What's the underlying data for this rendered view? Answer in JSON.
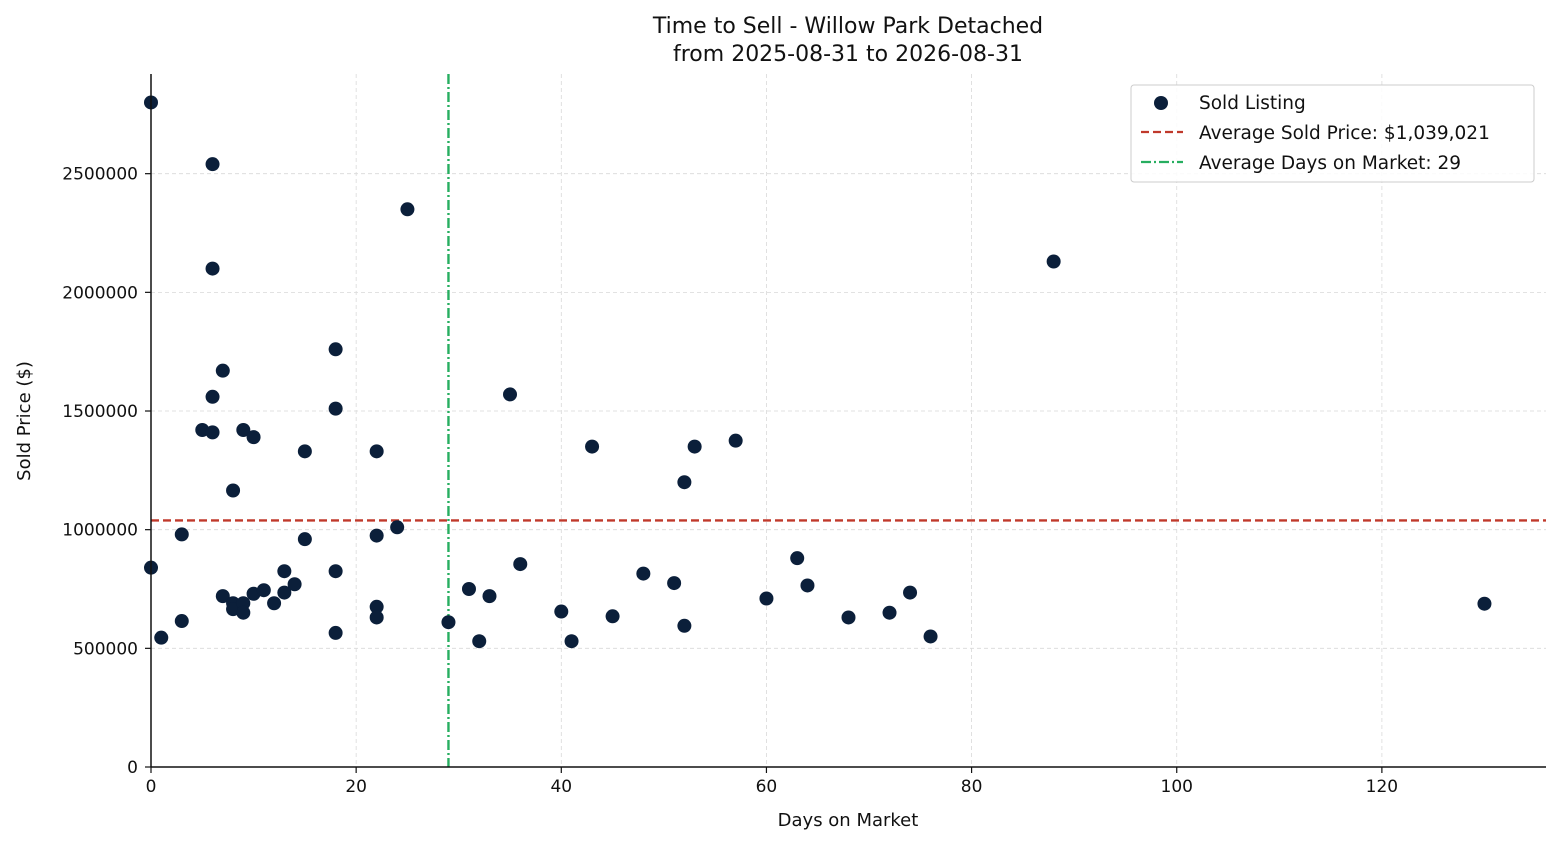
{
  "chart_data": {
    "type": "scatter",
    "title": "Time to Sell - Willow Park Detached",
    "subtitle": "from 2025-08-31 to 2026-08-31",
    "xlabel": "Days on Market",
    "ylabel": "Sold Price ($)",
    "xlim": [
      0,
      136
    ],
    "ylim": [
      0,
      2920000
    ],
    "xticks": [
      0,
      20,
      40,
      60,
      80,
      100,
      120
    ],
    "yticks": [
      0,
      500000,
      1000000,
      1500000,
      2000000,
      2500000
    ],
    "grid": true,
    "legend_position": "top-right",
    "colors": {
      "points": "#0b1f3a",
      "avg_price": "#c0392b",
      "avg_days": "#27ae60"
    },
    "series": [
      {
        "name": "Sold Listing",
        "points": [
          [
            0,
            2800000
          ],
          [
            0,
            840000
          ],
          [
            1,
            545000
          ],
          [
            3,
            980000
          ],
          [
            3,
            615000
          ],
          [
            5,
            1420000
          ],
          [
            6,
            2540000
          ],
          [
            6,
            2100000
          ],
          [
            6,
            1560000
          ],
          [
            6,
            1410000
          ],
          [
            7,
            1670000
          ],
          [
            7,
            720000
          ],
          [
            8,
            1165000
          ],
          [
            8,
            690000
          ],
          [
            8,
            665000
          ],
          [
            9,
            1420000
          ],
          [
            9,
            690000
          ],
          [
            9,
            650000
          ],
          [
            10,
            1390000
          ],
          [
            10,
            730000
          ],
          [
            11,
            745000
          ],
          [
            12,
            690000
          ],
          [
            13,
            825000
          ],
          [
            13,
            735000
          ],
          [
            14,
            770000
          ],
          [
            15,
            1330000
          ],
          [
            15,
            960000
          ],
          [
            18,
            1760000
          ],
          [
            18,
            1510000
          ],
          [
            18,
            825000
          ],
          [
            18,
            565000
          ],
          [
            22,
            1330000
          ],
          [
            22,
            975000
          ],
          [
            22,
            675000
          ],
          [
            22,
            630000
          ],
          [
            24,
            1010000
          ],
          [
            25,
            2350000
          ],
          [
            29,
            610000
          ],
          [
            31,
            750000
          ],
          [
            32,
            530000
          ],
          [
            33,
            720000
          ],
          [
            35,
            1570000
          ],
          [
            36,
            855000
          ],
          [
            40,
            655000
          ],
          [
            41,
            530000
          ],
          [
            43,
            1350000
          ],
          [
            45,
            635000
          ],
          [
            48,
            815000
          ],
          [
            51,
            775000
          ],
          [
            52,
            1200000
          ],
          [
            52,
            595000
          ],
          [
            53,
            1350000
          ],
          [
            57,
            1375000
          ],
          [
            60,
            710000
          ],
          [
            63,
            880000
          ],
          [
            64,
            765000
          ],
          [
            68,
            630000
          ],
          [
            72,
            650000
          ],
          [
            74,
            735000
          ],
          [
            76,
            550000
          ],
          [
            88,
            2130000
          ],
          [
            130,
            688000
          ]
        ]
      }
    ],
    "reference_lines": {
      "avg_price": {
        "name": "Average Sold Price: $1,039,021",
        "value": 1039021
      },
      "avg_days": {
        "name": "Average Days on Market: 29",
        "value": 29
      }
    }
  }
}
